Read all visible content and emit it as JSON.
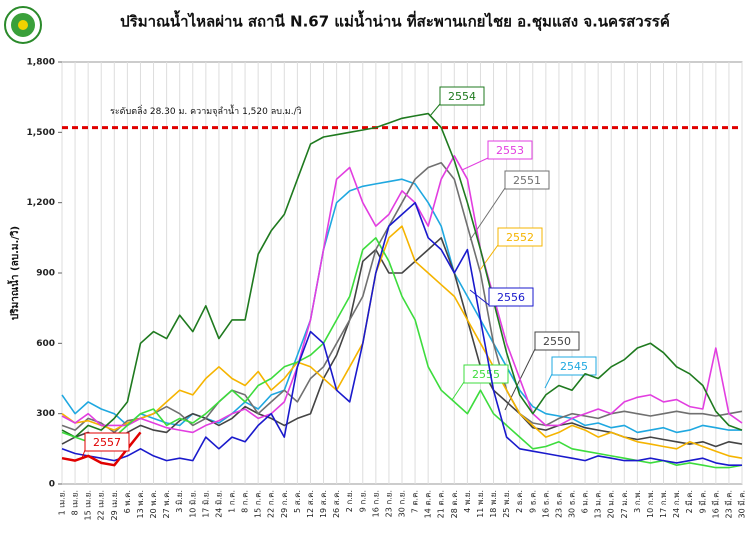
{
  "chart_data": {
    "type": "line",
    "title": "ปริมาณน้ำไหลผ่าน สถานี N.67 แม่น้ำน่าน ที่สะพานเกยไชย อ.ชุมแสง จ.นครสวรรค์",
    "y_label": "ปริมาณน้ำ (ลบ.ม./วิ)",
    "reference_line": {
      "value": 1520,
      "label": "ระดับตลิ่ง 28.30 ม. ความจุลำน้ำ 1,520 ลบ.ม./วิ",
      "color": "#e00000"
    },
    "ylim": [
      0,
      1800
    ],
    "yticks": [
      0,
      300,
      600,
      900,
      {
        "value": 1200,
        "label": "1,200"
      },
      {
        "value": 1500,
        "label": "1,500"
      },
      {
        "value": 1800,
        "label": "1,800"
      }
    ],
    "grid": true,
    "categories": [
      "1 เม.ย.",
      "8 เม.ย.",
      "15 เม.ย.",
      "22 เม.ย.",
      "29 เม.ย.",
      "6 พ.ค.",
      "13 พ.ค.",
      "20 พ.ค.",
      "27 พ.ค.",
      "3 มิ.ย.",
      "10 มิ.ย.",
      "17 มิ.ย.",
      "24 มิ.ย.",
      "1 ก.ค.",
      "8 ก.ค.",
      "15 ก.ค.",
      "22 ก.ค.",
      "29 ก.ค.",
      "5 ส.ค.",
      "12 ส.ค.",
      "19 ส.ค.",
      "26 ส.ค.",
      "2 ก.ย.",
      "9 ก.ย.",
      "16 ก.ย.",
      "23 ก.ย.",
      "30 ก.ย.",
      "7 ต.ค.",
      "14 ต.ค.",
      "21 ต.ค.",
      "28 ต.ค.",
      "4 พ.ย.",
      "11 พ.ย.",
      "18 พ.ย.",
      "25 พ.ย.",
      "2 ธ.ค.",
      "9 ธ.ค.",
      "16 ธ.ค.",
      "23 ธ.ค.",
      "30 ธ.ค.",
      "6 ม.ค.",
      "13 ม.ค.",
      "20 ม.ค.",
      "27 ม.ค.",
      "3 ก.พ.",
      "10 ก.พ.",
      "17 ก.พ.",
      "24 ก.พ.",
      "2 มี.ค.",
      "9 มี.ค.",
      "16 มี.ค.",
      "23 มี.ค.",
      "30 มี.ค."
    ],
    "series": [
      {
        "name": "2545",
        "color": "#1fa8e0",
        "values": [
          380,
          300,
          350,
          320,
          300,
          250,
          300,
          280,
          260,
          250,
          300,
          280,
          260,
          300,
          350,
          320,
          380,
          400,
          550,
          700,
          1000,
          1200,
          1250,
          1270,
          1280,
          1290,
          1300,
          1280,
          1200,
          1100,
          900,
          800,
          700,
          600,
          500,
          400,
          330,
          300,
          290,
          280,
          250,
          260,
          240,
          250,
          220,
          230,
          240,
          220,
          230,
          250,
          240,
          230,
          230
        ]
      },
      {
        "name": "2550",
        "color": "#444444",
        "values": [
          170,
          200,
          220,
          180,
          150,
          220,
          250,
          230,
          220,
          270,
          300,
          280,
          250,
          280,
          330,
          300,
          280,
          250,
          280,
          300,
          450,
          550,
          700,
          950,
          1000,
          900,
          900,
          950,
          1000,
          1050,
          900,
          700,
          500,
          400,
          350,
          300,
          240,
          230,
          250,
          260,
          240,
          230,
          220,
          200,
          190,
          200,
          190,
          180,
          170,
          180,
          160,
          180,
          170
        ]
      },
      {
        "name": "2551",
        "color": "#707070",
        "values": [
          250,
          230,
          280,
          260,
          220,
          270,
          280,
          300,
          330,
          300,
          250,
          280,
          350,
          400,
          380,
          300,
          350,
          400,
          350,
          450,
          500,
          600,
          700,
          800,
          1000,
          1100,
          1200,
          1300,
          1350,
          1370,
          1300,
          1100,
          900,
          600,
          400,
          300,
          260,
          250,
          280,
          300,
          290,
          280,
          300,
          310,
          300,
          290,
          300,
          310,
          300,
          300,
          290,
          300,
          310
        ]
      },
      {
        "name": "2552",
        "color": "#f5b400",
        "values": [
          300,
          260,
          270,
          250,
          230,
          260,
          280,
          300,
          350,
          400,
          380,
          450,
          500,
          450,
          420,
          480,
          400,
          450,
          520,
          500,
          450,
          400,
          500,
          600,
          900,
          1050,
          1100,
          950,
          900,
          850,
          800,
          700,
          600,
          500,
          400,
          300,
          250,
          200,
          220,
          250,
          230,
          200,
          220,
          200,
          180,
          170,
          160,
          150,
          180,
          160,
          140,
          120,
          110
        ]
      },
      {
        "name": "2553",
        "color": "#e23ee0",
        "values": [
          290,
          260,
          300,
          250,
          250,
          250,
          280,
          260,
          240,
          230,
          220,
          250,
          270,
          300,
          320,
          280,
          300,
          350,
          500,
          700,
          1000,
          1300,
          1350,
          1200,
          1100,
          1150,
          1250,
          1200,
          1100,
          1300,
          1400,
          1300,
          1000,
          800,
          600,
          450,
          300,
          250,
          250,
          280,
          300,
          320,
          300,
          350,
          370,
          380,
          350,
          360,
          330,
          320,
          580,
          300,
          260
        ]
      },
      {
        "name": "2554",
        "color": "#1f7a1f",
        "values": [
          230,
          200,
          250,
          230,
          280,
          350,
          600,
          650,
          620,
          720,
          650,
          760,
          620,
          700,
          700,
          980,
          1080,
          1150,
          1300,
          1450,
          1480,
          1490,
          1500,
          1510,
          1520,
          1540,
          1560,
          1570,
          1580,
          1520,
          1380,
          1200,
          1000,
          780,
          560,
          380,
          300,
          380,
          420,
          400,
          470,
          450,
          500,
          530,
          580,
          600,
          560,
          500,
          470,
          420,
          310,
          250,
          230
        ]
      },
      {
        "name": "2555",
        "color": "#3ddc3d",
        "values": [
          220,
          200,
          180,
          150,
          200,
          250,
          300,
          320,
          250,
          280,
          260,
          300,
          350,
          400,
          350,
          420,
          450,
          500,
          520,
          550,
          600,
          700,
          800,
          1000,
          1050,
          950,
          800,
          700,
          500,
          400,
          350,
          300,
          400,
          300,
          250,
          200,
          150,
          160,
          180,
          150,
          140,
          130,
          120,
          110,
          100,
          90,
          100,
          80,
          90,
          80,
          70,
          70,
          80
        ]
      },
      {
        "name": "2556",
        "color": "#1a1acc",
        "values": [
          150,
          130,
          120,
          110,
          100,
          120,
          150,
          120,
          100,
          110,
          100,
          200,
          150,
          200,
          180,
          250,
          300,
          200,
          500,
          650,
          600,
          400,
          350,
          600,
          900,
          1100,
          1150,
          1200,
          1050,
          1000,
          900,
          1000,
          700,
          400,
          200,
          150,
          140,
          130,
          120,
          110,
          100,
          120,
          110,
          100,
          100,
          110,
          100,
          90,
          100,
          110,
          90,
          80,
          80
        ]
      },
      {
        "name": "2557",
        "color": "#e00000",
        "values": [
          110,
          100,
          120,
          90,
          80,
          150,
          220,
          null,
          null,
          null,
          null,
          null,
          null,
          null,
          null,
          null,
          null,
          null,
          null,
          null,
          null,
          null,
          null,
          null,
          null,
          null,
          null,
          null,
          null,
          null,
          null,
          null,
          null,
          null,
          null,
          null,
          null,
          null,
          null,
          null,
          null,
          null,
          null,
          null,
          null,
          null,
          null,
          null,
          null,
          null,
          null,
          null,
          null
        ]
      }
    ]
  }
}
